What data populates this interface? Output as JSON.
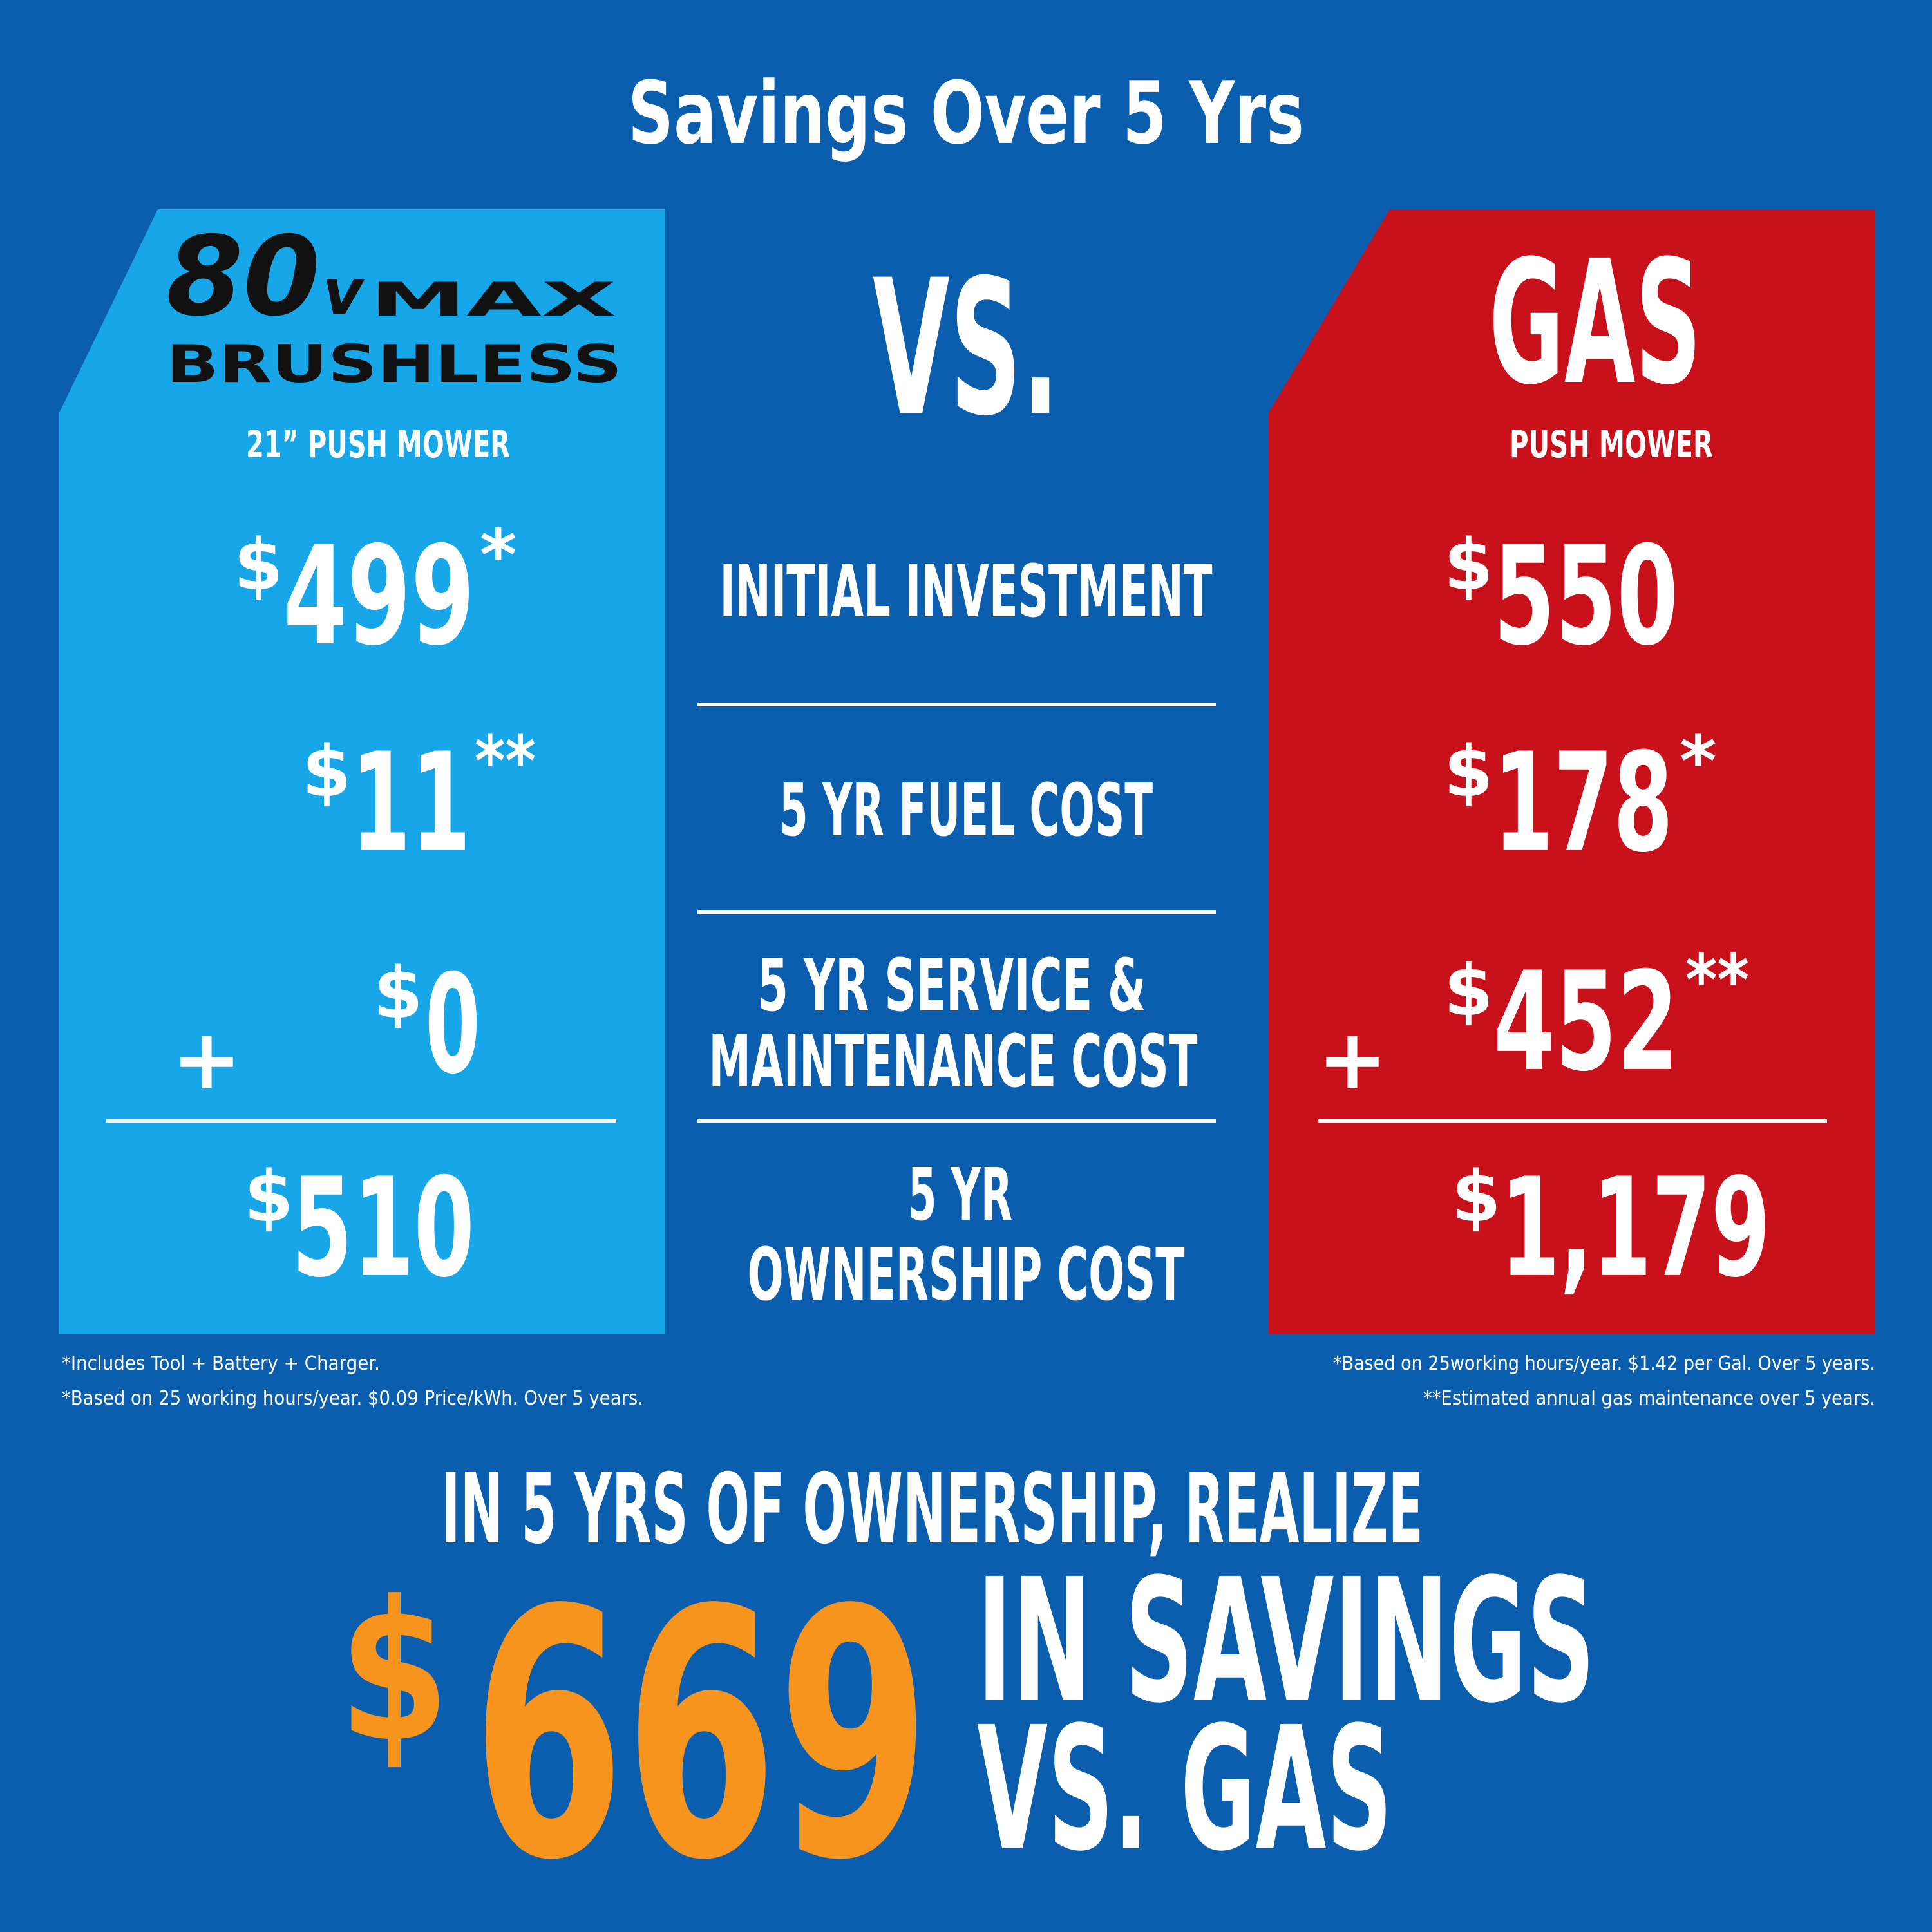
{
  "header": {
    "title": "Savings Over 5 Yrs"
  },
  "electric": {
    "brand": {
      "voltage": "80",
      "unit": "v",
      "series": "MAX",
      "line": "BRUSHLESS"
    },
    "product": "21” PUSH MOWER",
    "costs": [
      {
        "currency": "$",
        "amount": 499,
        "note": "*"
      },
      {
        "currency": "$",
        "amount": 11,
        "note": "**"
      },
      {
        "currency": "$",
        "amount": 0
      }
    ],
    "operator": "+",
    "total": {
      "currency": "$",
      "amount": 510
    },
    "footnotes": [
      "*Includes Tool + Battery + Charger.",
      "*Based on 25 working hours/year. $0.09 Price/kWh. Over 5 years."
    ]
  },
  "comparison": {
    "vs": "VS.",
    "labels": [
      [
        "INITIAL INVESTMENT"
      ],
      [
        "5 YR FUEL COST"
      ],
      [
        "5 YR SERVICE &",
        "MAINTENANCE COST"
      ],
      [
        "5 YR",
        "OWNERSHIP COST"
      ]
    ]
  },
  "gas": {
    "brand": "GAS",
    "product": "PUSH MOWER",
    "costs": [
      {
        "currency": "$",
        "amount": 550
      },
      {
        "currency": "$",
        "amount": 178,
        "note": "*"
      },
      {
        "currency": "$",
        "amount": 452,
        "note": "**"
      }
    ],
    "operator": "+",
    "total": {
      "currency": "$",
      "amount": "1,179"
    },
    "footnotes": [
      "*Based on 25working hours/year. $1.42 per Gal. Over 5 years.",
      "**Estimated annual gas maintenance over 5 years."
    ]
  },
  "summary": {
    "intro": "IN 5 YRS OF OWNERSHIP, REALIZE",
    "currency": "$",
    "amount": 669,
    "lines": [
      "IN SAVINGS",
      "VS. GAS"
    ]
  }
}
